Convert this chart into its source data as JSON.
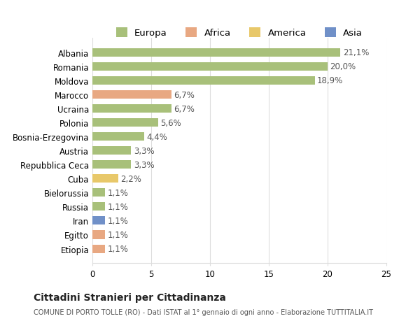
{
  "categories": [
    "Albania",
    "Romania",
    "Moldova",
    "Marocco",
    "Ucraina",
    "Polonia",
    "Bosnia-Erzegovina",
    "Austria",
    "Repubblica Ceca",
    "Cuba",
    "Bielorussia",
    "Russia",
    "Iran",
    "Egitto",
    "Etiopia"
  ],
  "values": [
    21.1,
    20.0,
    18.9,
    6.7,
    6.7,
    5.6,
    4.4,
    3.3,
    3.3,
    2.2,
    1.1,
    1.1,
    1.1,
    1.1,
    1.1
  ],
  "labels": [
    "21,1%",
    "20,0%",
    "18,9%",
    "6,7%",
    "6,7%",
    "5,6%",
    "4,4%",
    "3,3%",
    "3,3%",
    "2,2%",
    "1,1%",
    "1,1%",
    "1,1%",
    "1,1%",
    "1,1%"
  ],
  "bar_colors": [
    "#a8c07a",
    "#a8c07a",
    "#a8c07a",
    "#e8a882",
    "#a8c07a",
    "#a8c07a",
    "#a8c07a",
    "#a8c07a",
    "#a8c07a",
    "#e8c86a",
    "#a8c07a",
    "#a8c07a",
    "#7090c8",
    "#e8a882",
    "#e8a882"
  ],
  "legend_labels": [
    "Europa",
    "Africa",
    "America",
    "Asia"
  ],
  "legend_colors": [
    "#a8c07a",
    "#e8a882",
    "#e8c86a",
    "#7090c8"
  ],
  "xlim": [
    0,
    25
  ],
  "xticks": [
    0,
    5,
    10,
    15,
    20,
    25
  ],
  "title": "Cittadini Stranieri per Cittadinanza",
  "subtitle": "COMUNE DI PORTO TOLLE (RO) - Dati ISTAT al 1° gennaio di ogni anno - Elaborazione TUTTITALIA.IT",
  "bg_color": "#ffffff",
  "grid_color": "#dddddd",
  "bar_height": 0.6,
  "label_fontsize": 8.5,
  "tick_fontsize": 8.5
}
